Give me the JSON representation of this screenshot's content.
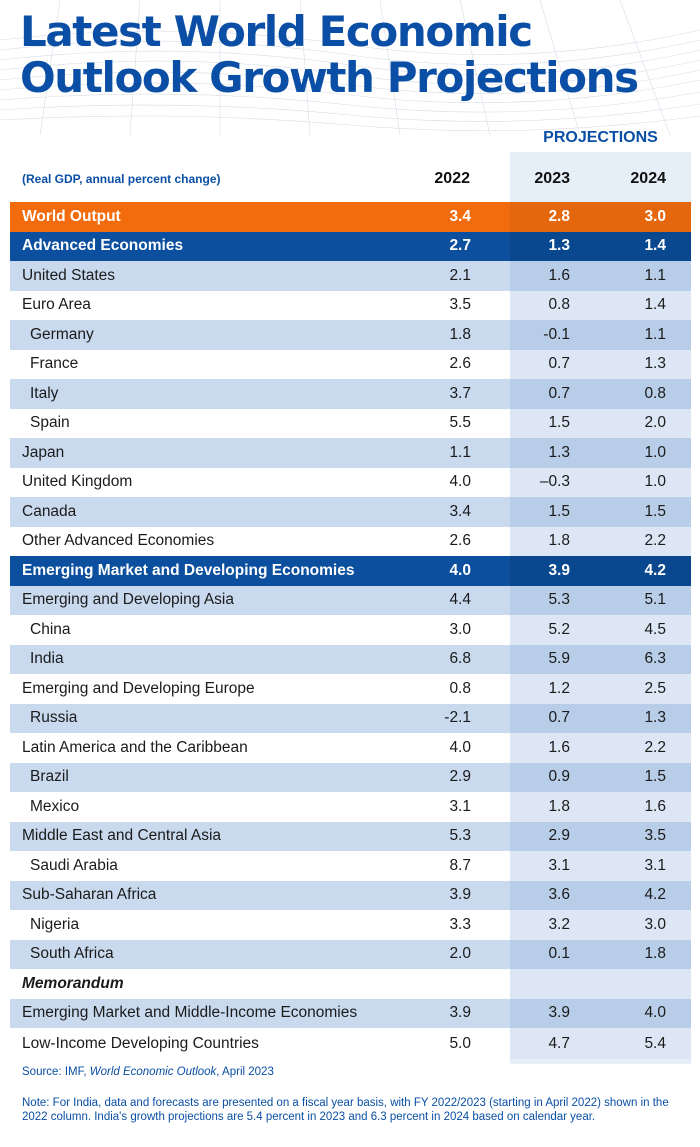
{
  "header": {
    "title_line1": "Latest World Economic",
    "title_line2": "Outlook Growth Projections"
  },
  "table": {
    "projections_label": "PROJECTIONS",
    "units": "(Real GDP, annual percent change)",
    "columns": [
      "2022",
      "2023",
      "2024"
    ],
    "rows": [
      {
        "name": "World Output",
        "values": [
          "3.4",
          "2.8",
          "3.0"
        ]
      },
      {
        "name": "Advanced Economies",
        "values": [
          "2.7",
          "1.3",
          "1.4"
        ]
      },
      {
        "name": "United States",
        "values": [
          "2.1",
          "1.6",
          "1.1"
        ]
      },
      {
        "name": "Euro Area",
        "values": [
          "3.5",
          "0.8",
          "1.4"
        ]
      },
      {
        "name": "Germany",
        "values": [
          "1.8",
          "-0.1",
          "1.1"
        ]
      },
      {
        "name": "France",
        "values": [
          "2.6",
          "0.7",
          "1.3"
        ]
      },
      {
        "name": "Italy",
        "values": [
          "3.7",
          "0.7",
          "0.8"
        ]
      },
      {
        "name": "Spain",
        "values": [
          "5.5",
          "1.5",
          "2.0"
        ]
      },
      {
        "name": "Japan",
        "values": [
          "1.1",
          "1.3",
          "1.0"
        ]
      },
      {
        "name": "United Kingdom",
        "values": [
          "4.0",
          "–0.3",
          "1.0"
        ]
      },
      {
        "name": "Canada",
        "values": [
          "3.4",
          "1.5",
          "1.5"
        ]
      },
      {
        "name": "Other Advanced Economies",
        "values": [
          "2.6",
          "1.8",
          "2.2"
        ]
      },
      {
        "name": "Emerging Market and Developing Economies",
        "values": [
          "4.0",
          "3.9",
          "4.2"
        ]
      },
      {
        "name": "Emerging and Developing Asia",
        "values": [
          "4.4",
          "5.3",
          "5.1"
        ]
      },
      {
        "name": "China",
        "values": [
          "3.0",
          "5.2",
          "4.5"
        ]
      },
      {
        "name": "India",
        "values": [
          "6.8",
          "5.9",
          "6.3"
        ]
      },
      {
        "name": "Emerging and Developing Europe",
        "values": [
          "0.8",
          "1.2",
          "2.5"
        ]
      },
      {
        "name": "Russia",
        "values": [
          "-2.1",
          "0.7",
          "1.3"
        ]
      },
      {
        "name": "Latin America and the Caribbean",
        "values": [
          "4.0",
          "1.6",
          "2.2"
        ]
      },
      {
        "name": "Brazil",
        "values": [
          "2.9",
          "0.9",
          "1.5"
        ]
      },
      {
        "name": "Mexico",
        "values": [
          "3.1",
          "1.8",
          "1.6"
        ]
      },
      {
        "name": "Middle East and Central Asia",
        "values": [
          "5.3",
          "2.9",
          "3.5"
        ]
      },
      {
        "name": "Saudi Arabia",
        "values": [
          "8.7",
          "3.1",
          "3.1"
        ]
      },
      {
        "name": "Sub-Saharan Africa",
        "values": [
          "3.9",
          "3.6",
          "4.2"
        ]
      },
      {
        "name": "Nigeria",
        "values": [
          "3.3",
          "3.2",
          "3.0"
        ]
      },
      {
        "name": "South Africa",
        "values": [
          "2.0",
          "0.1",
          "1.8"
        ]
      },
      {
        "name": "Memorandum",
        "values": [
          "",
          "",
          ""
        ]
      },
      {
        "name": "Emerging Market and Middle-Income Economies",
        "values": [
          "3.9",
          "3.9",
          "4.0"
        ]
      },
      {
        "name": "Low-Income Developing Countries",
        "values": [
          "5.0",
          "4.7",
          "5.4"
        ]
      }
    ]
  },
  "footer": {
    "source_prefix": "Source: IMF, ",
    "source_title": "World Economic Outlook",
    "source_suffix": ", April 2023",
    "note": "Note: For India, data and forecasts are presented on a fiscal year basis, with FY 2022/2023 (starting in April 2022) shown in the 2022 column. India's growth projections are 5.4 percent in 2023 and 6.3 percent in 2024 based on calendar year."
  },
  "colors": {
    "brand_blue": "#0a4fa5",
    "world_output_orange": "#f26c0d",
    "group_row_blue": "#0b4f9e",
    "shaded_row": "#c9d9ee"
  }
}
